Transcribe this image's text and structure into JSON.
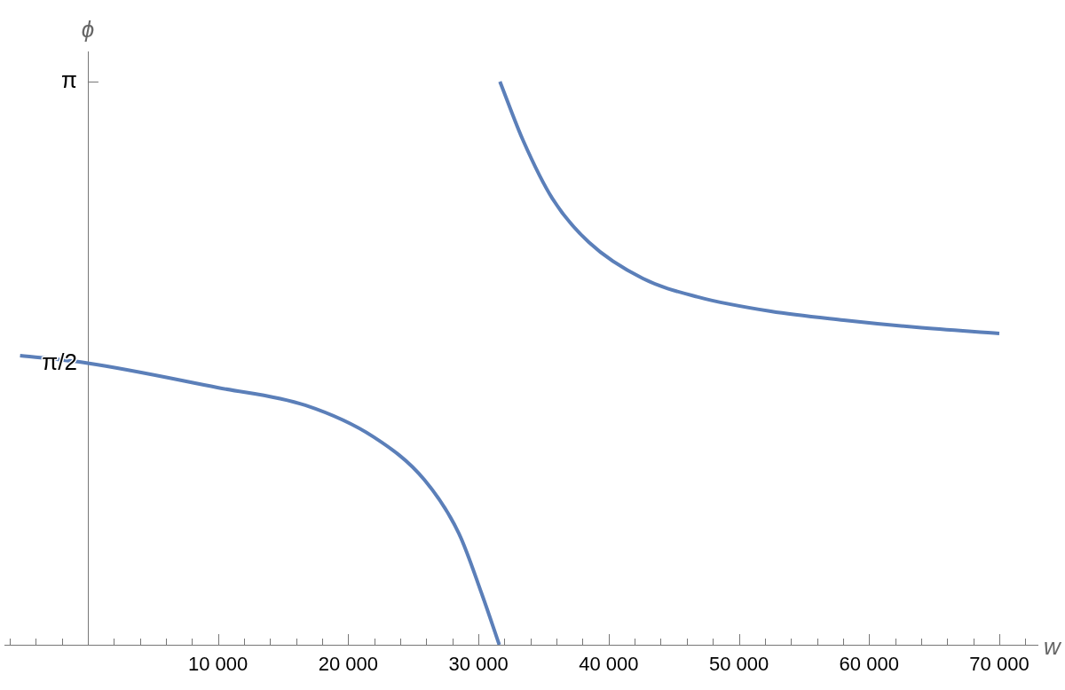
{
  "chart_data": {
    "type": "line",
    "xlabel": "w",
    "ylabel": "ϕ",
    "xlim": [
      -6400,
      73000
    ],
    "ylim": [
      0,
      3.31
    ],
    "xticks": [
      {
        "value": -6000,
        "label": null
      },
      {
        "value": -4000,
        "label": null
      },
      {
        "value": -2000,
        "label": null
      },
      {
        "value": 2000,
        "label": null
      },
      {
        "value": 4000,
        "label": null
      },
      {
        "value": 6000,
        "label": null
      },
      {
        "value": 8000,
        "label": null
      },
      {
        "value": 10000,
        "label": "10 000"
      },
      {
        "value": 12000,
        "label": null
      },
      {
        "value": 14000,
        "label": null
      },
      {
        "value": 16000,
        "label": null
      },
      {
        "value": 18000,
        "label": null
      },
      {
        "value": 20000,
        "label": "20 000"
      },
      {
        "value": 22000,
        "label": null
      },
      {
        "value": 24000,
        "label": null
      },
      {
        "value": 26000,
        "label": null
      },
      {
        "value": 28000,
        "label": null
      },
      {
        "value": 30000,
        "label": "30 000"
      },
      {
        "value": 32000,
        "label": null
      },
      {
        "value": 34000,
        "label": null
      },
      {
        "value": 36000,
        "label": null
      },
      {
        "value": 38000,
        "label": null
      },
      {
        "value": 40000,
        "label": "40 000"
      },
      {
        "value": 42000,
        "label": null
      },
      {
        "value": 44000,
        "label": null
      },
      {
        "value": 46000,
        "label": null
      },
      {
        "value": 48000,
        "label": null
      },
      {
        "value": 50000,
        "label": "50 000"
      },
      {
        "value": 52000,
        "label": null
      },
      {
        "value": 54000,
        "label": null
      },
      {
        "value": 56000,
        "label": null
      },
      {
        "value": 58000,
        "label": null
      },
      {
        "value": 60000,
        "label": "60 000"
      },
      {
        "value": 62000,
        "label": null
      },
      {
        "value": 64000,
        "label": null
      },
      {
        "value": 66000,
        "label": null
      },
      {
        "value": 68000,
        "label": null
      },
      {
        "value": 70000,
        "label": "70 000"
      },
      {
        "value": 72000,
        "label": null
      }
    ],
    "yticks": [
      {
        "value": 1.5708,
        "label": "π/2"
      },
      {
        "value": 3.1416,
        "label": "π"
      }
    ],
    "series": [
      {
        "color": "#5b7fb9",
        "x": [
          -5200,
          0,
          9960,
          16700,
          21970,
          25850,
          28510,
          30290,
          31600
        ],
        "values": [
          1.613,
          1.571,
          1.435,
          1.336,
          1.158,
          0.92,
          0.619,
          0.277,
          0
        ]
      },
      {
        "color": "#5b7fb9",
        "x": [
          31650,
          33420,
          35680,
          38470,
          42630,
          46860,
          52460,
          58050,
          63640,
          70000
        ],
        "values": [
          3.142,
          2.815,
          2.489,
          2.246,
          2.043,
          1.94,
          1.86,
          1.811,
          1.771,
          1.737
        ]
      }
    ],
    "grid": false,
    "legend": false,
    "marker": "none",
    "line_style": "solid"
  }
}
